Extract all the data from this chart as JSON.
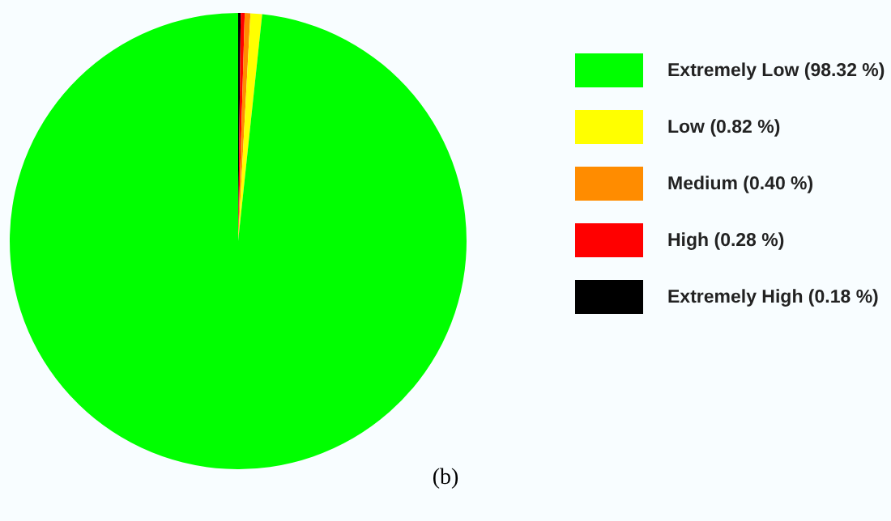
{
  "chart_data": {
    "type": "pie",
    "categories": [
      "Extremely Low (98.32 %)",
      "Low (0.82 %)",
      "Medium (0.40 %)",
      "High (0.28 %)",
      "Extremely High (0.18 %)"
    ],
    "values": [
      98.32,
      0.82,
      0.4,
      0.28,
      0.18
    ],
    "colors": [
      "#00ff00",
      "#ffff00",
      "#ff8c00",
      "#ff0000",
      "#000000"
    ],
    "legend": "right",
    "annotations": [
      "(b)"
    ]
  }
}
